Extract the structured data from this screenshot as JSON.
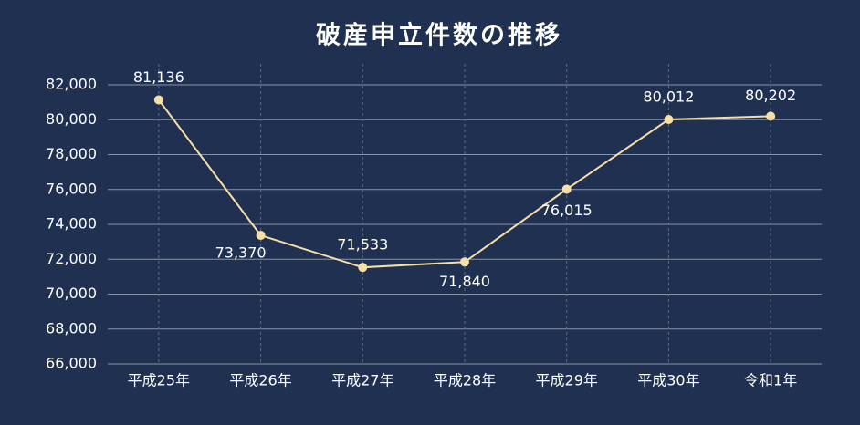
{
  "chart_data": {
    "type": "line",
    "title": "破産申立件数の推移",
    "categories": [
      "平成25年",
      "平成26年",
      "平成27年",
      "平成28年",
      "平成29年",
      "平成30年",
      "令和1年"
    ],
    "series": [
      {
        "name": "破産申立件数",
        "color": "#f7dfa5",
        "values": [
          81136,
          73370,
          71533,
          71840,
          76015,
          80012,
          80202
        ],
        "value_labels": [
          "81,136",
          "73,370",
          "71,533",
          "71,840",
          "76,015",
          "80,012",
          "80,202"
        ]
      }
    ],
    "ylim": [
      66000,
      82000
    ],
    "yticks": [
      {
        "value": 66000,
        "label": "66,000"
      },
      {
        "value": 68000,
        "label": "68,000"
      },
      {
        "value": 70000,
        "label": "70,000"
      },
      {
        "value": 72000,
        "label": "72,000"
      },
      {
        "value": 74000,
        "label": "74,000"
      },
      {
        "value": 76000,
        "label": "76,000"
      },
      {
        "value": 78000,
        "label": "78,000"
      },
      {
        "value": 80000,
        "label": "80,000"
      },
      {
        "value": 82000,
        "label": "82,000"
      }
    ],
    "grid": true
  }
}
